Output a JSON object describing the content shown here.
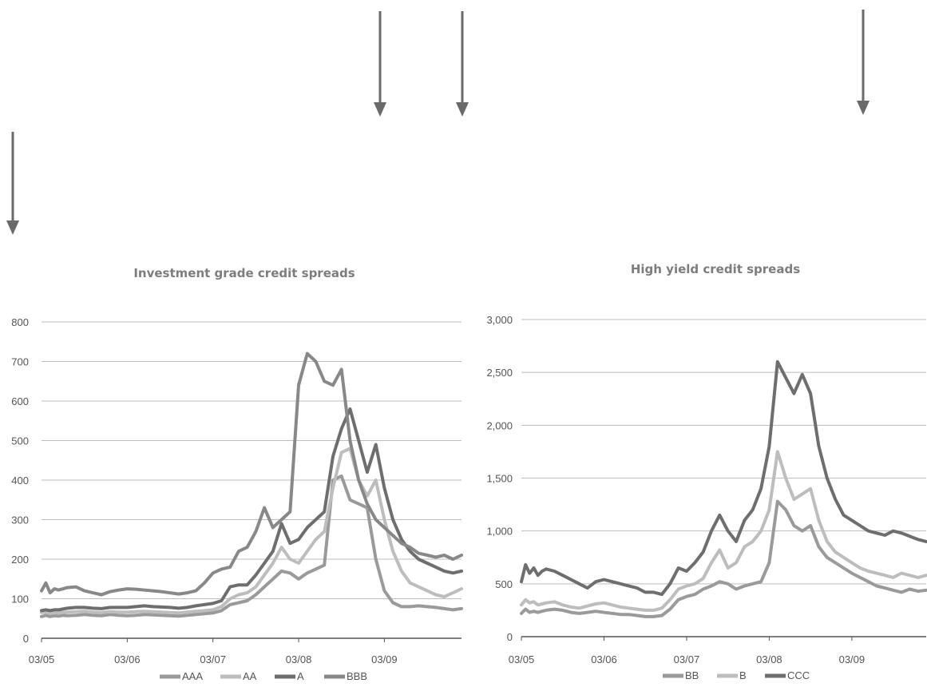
{
  "chart_data": [
    {
      "type": "line",
      "title": "Investment grade credit spreads",
      "xlabel": "",
      "ylabel": "",
      "ylim": [
        0,
        800
      ],
      "y_ticks": [
        0,
        100,
        200,
        300,
        400,
        500,
        600,
        700,
        800
      ],
      "y_tick_labels": [
        "0",
        "100",
        "200",
        "300",
        "400",
        "500",
        "600",
        "700",
        "800"
      ],
      "x_tick_labels": [
        "03/05",
        "03/06",
        "03/07",
        "03/08",
        "03/09"
      ],
      "grid": true,
      "legend": "bottom",
      "x": [
        2005.0,
        2005.05,
        2005.1,
        2005.15,
        2005.2,
        2005.25,
        2005.3,
        2005.4,
        2005.5,
        2005.6,
        2005.7,
        2005.8,
        2005.9,
        2006.0,
        2006.1,
        2006.2,
        2006.3,
        2006.4,
        2006.5,
        2006.6,
        2006.7,
        2006.8,
        2006.9,
        2007.0,
        2007.1,
        2007.2,
        2007.3,
        2007.4,
        2007.5,
        2007.6,
        2007.7,
        2007.8,
        2007.9,
        2008.0,
        2008.1,
        2008.2,
        2008.3,
        2008.4,
        2008.5,
        2008.6,
        2008.7,
        2008.8,
        2008.9,
        2009.0,
        2009.1,
        2009.2,
        2009.3,
        2009.4,
        2009.5,
        2009.6,
        2009.7,
        2009.8,
        2009.9
      ],
      "series": [
        {
          "name": "AAA",
          "color": "#9a9a9a",
          "values": [
            55,
            58,
            55,
            57,
            56,
            58,
            57,
            58,
            60,
            58,
            57,
            60,
            58,
            57,
            58,
            60,
            59,
            58,
            57,
            56,
            58,
            60,
            62,
            64,
            70,
            85,
            90,
            95,
            110,
            130,
            150,
            170,
            165,
            150,
            165,
            175,
            185,
            400,
            410,
            350,
            340,
            330,
            200,
            120,
            90,
            80,
            80,
            82,
            80,
            78,
            75,
            72,
            75
          ]
        },
        {
          "name": "AA",
          "color": "#bdbdbd",
          "values": [
            65,
            66,
            63,
            64,
            64,
            65,
            66,
            67,
            68,
            66,
            65,
            67,
            66,
            66,
            67,
            68,
            67,
            66,
            65,
            64,
            66,
            68,
            70,
            72,
            80,
            100,
            110,
            115,
            130,
            160,
            190,
            230,
            200,
            190,
            220,
            250,
            270,
            380,
            470,
            480,
            400,
            360,
            400,
            300,
            220,
            170,
            140,
            130,
            120,
            110,
            105,
            115,
            125
          ]
        },
        {
          "name": "A",
          "color": "#6e6e6e",
          "values": [
            70,
            72,
            70,
            72,
            72,
            74,
            76,
            78,
            78,
            76,
            75,
            78,
            78,
            78,
            80,
            82,
            80,
            79,
            78,
            76,
            78,
            82,
            85,
            88,
            95,
            130,
            135,
            135,
            160,
            190,
            220,
            290,
            240,
            250,
            280,
            300,
            320,
            460,
            530,
            580,
            500,
            420,
            490,
            380,
            300,
            250,
            220,
            200,
            190,
            180,
            170,
            165,
            170
          ]
        },
        {
          "name": "BBB",
          "color": "#888888",
          "values": [
            120,
            140,
            115,
            125,
            122,
            125,
            128,
            130,
            120,
            115,
            110,
            118,
            122,
            125,
            124,
            122,
            120,
            118,
            115,
            112,
            115,
            120,
            140,
            165,
            175,
            180,
            220,
            230,
            270,
            330,
            280,
            300,
            320,
            640,
            720,
            700,
            650,
            640,
            680,
            500,
            400,
            340,
            300,
            280,
            260,
            240,
            230,
            215,
            210,
            205,
            210,
            200,
            210
          ]
        }
      ]
    },
    {
      "type": "line",
      "title": "High yield credit spreads",
      "xlabel": "",
      "ylabel": "",
      "ylim": [
        0,
        3000
      ],
      "y_ticks": [
        0,
        500,
        1000,
        1500,
        2000,
        2500,
        3000
      ],
      "y_tick_labels": [
        "0",
        "500",
        "1,000",
        "1,500",
        "2,000",
        "2,500",
        "3,000"
      ],
      "x_tick_labels": [
        "03/05",
        "03/06",
        "03/07",
        "03/08",
        "03/09"
      ],
      "grid": true,
      "legend": "bottom",
      "x": [
        2005.0,
        2005.05,
        2005.1,
        2005.15,
        2005.2,
        2005.25,
        2005.3,
        2005.4,
        2005.5,
        2005.6,
        2005.7,
        2005.8,
        2005.9,
        2006.0,
        2006.1,
        2006.2,
        2006.3,
        2006.4,
        2006.5,
        2006.6,
        2006.7,
        2006.8,
        2006.9,
        2007.0,
        2007.1,
        2007.2,
        2007.3,
        2007.4,
        2007.5,
        2007.6,
        2007.7,
        2007.8,
        2007.9,
        2008.0,
        2008.1,
        2008.2,
        2008.3,
        2008.4,
        2008.5,
        2008.6,
        2008.7,
        2008.8,
        2008.9,
        2009.0,
        2009.1,
        2009.2,
        2009.3,
        2009.4,
        2009.5,
        2009.6,
        2009.7,
        2009.8,
        2009.9
      ],
      "series": [
        {
          "name": "BB",
          "color": "#9a9a9a",
          "values": [
            220,
            260,
            230,
            240,
            230,
            240,
            250,
            260,
            250,
            230,
            220,
            230,
            240,
            230,
            220,
            210,
            210,
            200,
            190,
            190,
            200,
            260,
            350,
            380,
            400,
            450,
            480,
            520,
            500,
            450,
            480,
            500,
            520,
            700,
            1280,
            1200,
            1050,
            1000,
            1050,
            850,
            750,
            700,
            650,
            600,
            560,
            520,
            480,
            460,
            440,
            420,
            450,
            430,
            440
          ]
        },
        {
          "name": "B",
          "color": "#bdbdbd",
          "values": [
            300,
            350,
            320,
            330,
            300,
            310,
            320,
            330,
            300,
            280,
            270,
            290,
            310,
            320,
            300,
            280,
            270,
            260,
            250,
            250,
            270,
            350,
            450,
            480,
            500,
            550,
            700,
            820,
            650,
            700,
            850,
            900,
            1000,
            1200,
            1750,
            1500,
            1300,
            1350,
            1400,
            1100,
            900,
            800,
            750,
            700,
            650,
            620,
            600,
            580,
            560,
            600,
            580,
            560,
            580
          ]
        },
        {
          "name": "CCC",
          "color": "#6e6e6e",
          "values": [
            520,
            680,
            600,
            650,
            580,
            620,
            640,
            620,
            580,
            540,
            500,
            460,
            520,
            540,
            520,
            500,
            480,
            460,
            420,
            420,
            400,
            500,
            650,
            620,
            700,
            800,
            1000,
            1150,
            1000,
            900,
            1100,
            1200,
            1400,
            1800,
            2600,
            2450,
            2300,
            2480,
            2300,
            1800,
            1500,
            1300,
            1150,
            1100,
            1050,
            1000,
            980,
            960,
            1000,
            980,
            950,
            920,
            900
          ]
        }
      ]
    }
  ]
}
